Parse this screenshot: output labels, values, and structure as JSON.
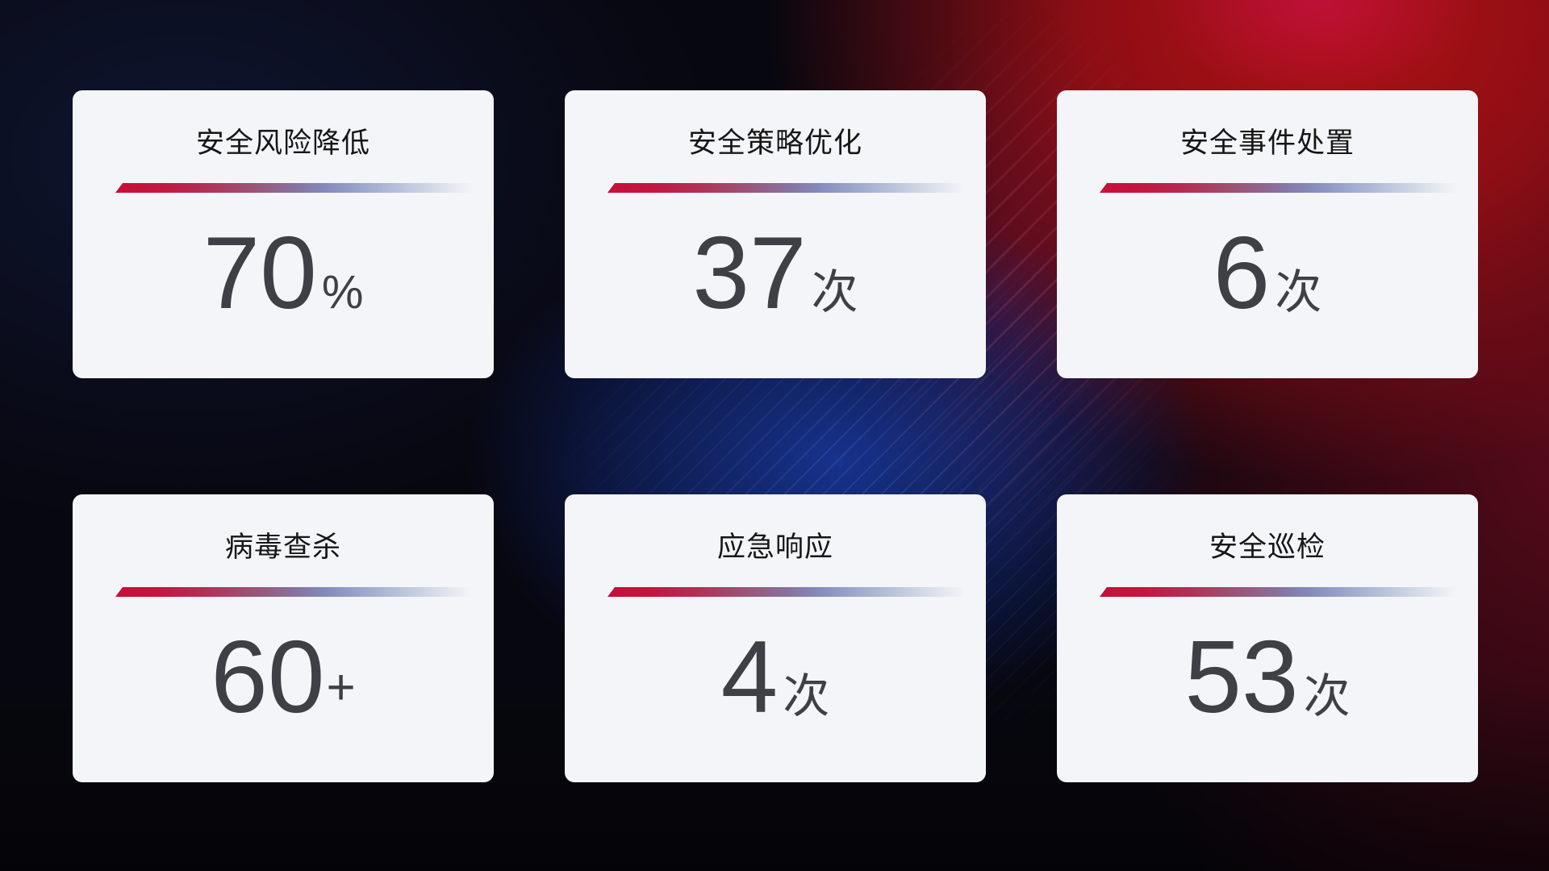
{
  "cards": [
    {
      "title": "安全风险降低",
      "value": "70",
      "unit": "%"
    },
    {
      "title": "安全策略优化",
      "value": "37",
      "unit": "次"
    },
    {
      "title": "安全事件处置",
      "value": "6",
      "unit": "次"
    },
    {
      "title": "病毒查杀",
      "value": "60",
      "unit": "+"
    },
    {
      "title": "应急响应",
      "value": "4",
      "unit": "次"
    },
    {
      "title": "安全巡检",
      "value": "53",
      "unit": "次"
    }
  ],
  "colors": {
    "card_background": "#f4f5f8",
    "title_text": "#161616",
    "value_text": "#3e4046",
    "divider_red": "#c60f38",
    "divider_blue": "#9aa6cc",
    "background_blue_glow": "#183696",
    "background_red": "#ad1112",
    "background_dark": "#07070f"
  }
}
